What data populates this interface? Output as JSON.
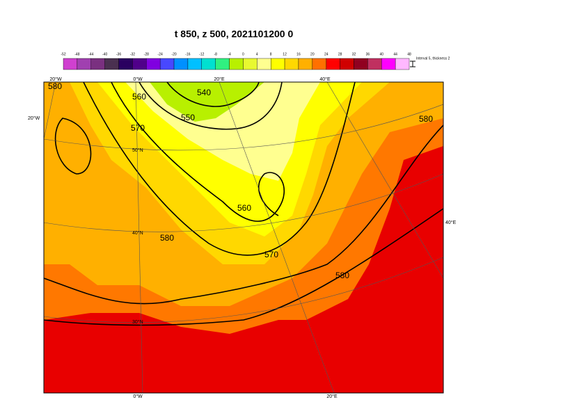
{
  "title": "t 850, z 500, 2021101200 0",
  "colorbar": {
    "ticks": [
      -52,
      -48,
      -44,
      -40,
      -36,
      -32,
      -28,
      -24,
      -20,
      -16,
      -12,
      -8,
      -4,
      0,
      4,
      8,
      12,
      16,
      20,
      24,
      28,
      32,
      36,
      40,
      44,
      48
    ],
    "colors": [
      "#d040d0",
      "#a040b0",
      "#7a3080",
      "#4a3050",
      "#2a0060",
      "#50008a",
      "#8000e0",
      "#4848ff",
      "#0090ff",
      "#00c0ff",
      "#00e0d0",
      "#30f080",
      "#b8f000",
      "#e8f830",
      "#ffff90",
      "#ffff00",
      "#ffd800",
      "#ffb000",
      "#ff7000",
      "#ff0000",
      "#d00000",
      "#900020",
      "#c03060",
      "#ff00ff",
      "#ffb8ff"
    ],
    "note": "Interval 5, thickness 2"
  },
  "contour_labels": [
    "540",
    "550",
    "560",
    "570",
    "580",
    "560",
    "570",
    "580",
    "580",
    "580"
  ],
  "grid_labels": {
    "top": [
      "20°W",
      "0°W",
      "20°E",
      "40°E"
    ],
    "left": [
      "20°W"
    ],
    "right": [
      "40°E"
    ],
    "lat": [
      "50°N",
      "40°N",
      "30°N"
    ],
    "bottom": [
      "0°W",
      "20°E"
    ]
  }
}
